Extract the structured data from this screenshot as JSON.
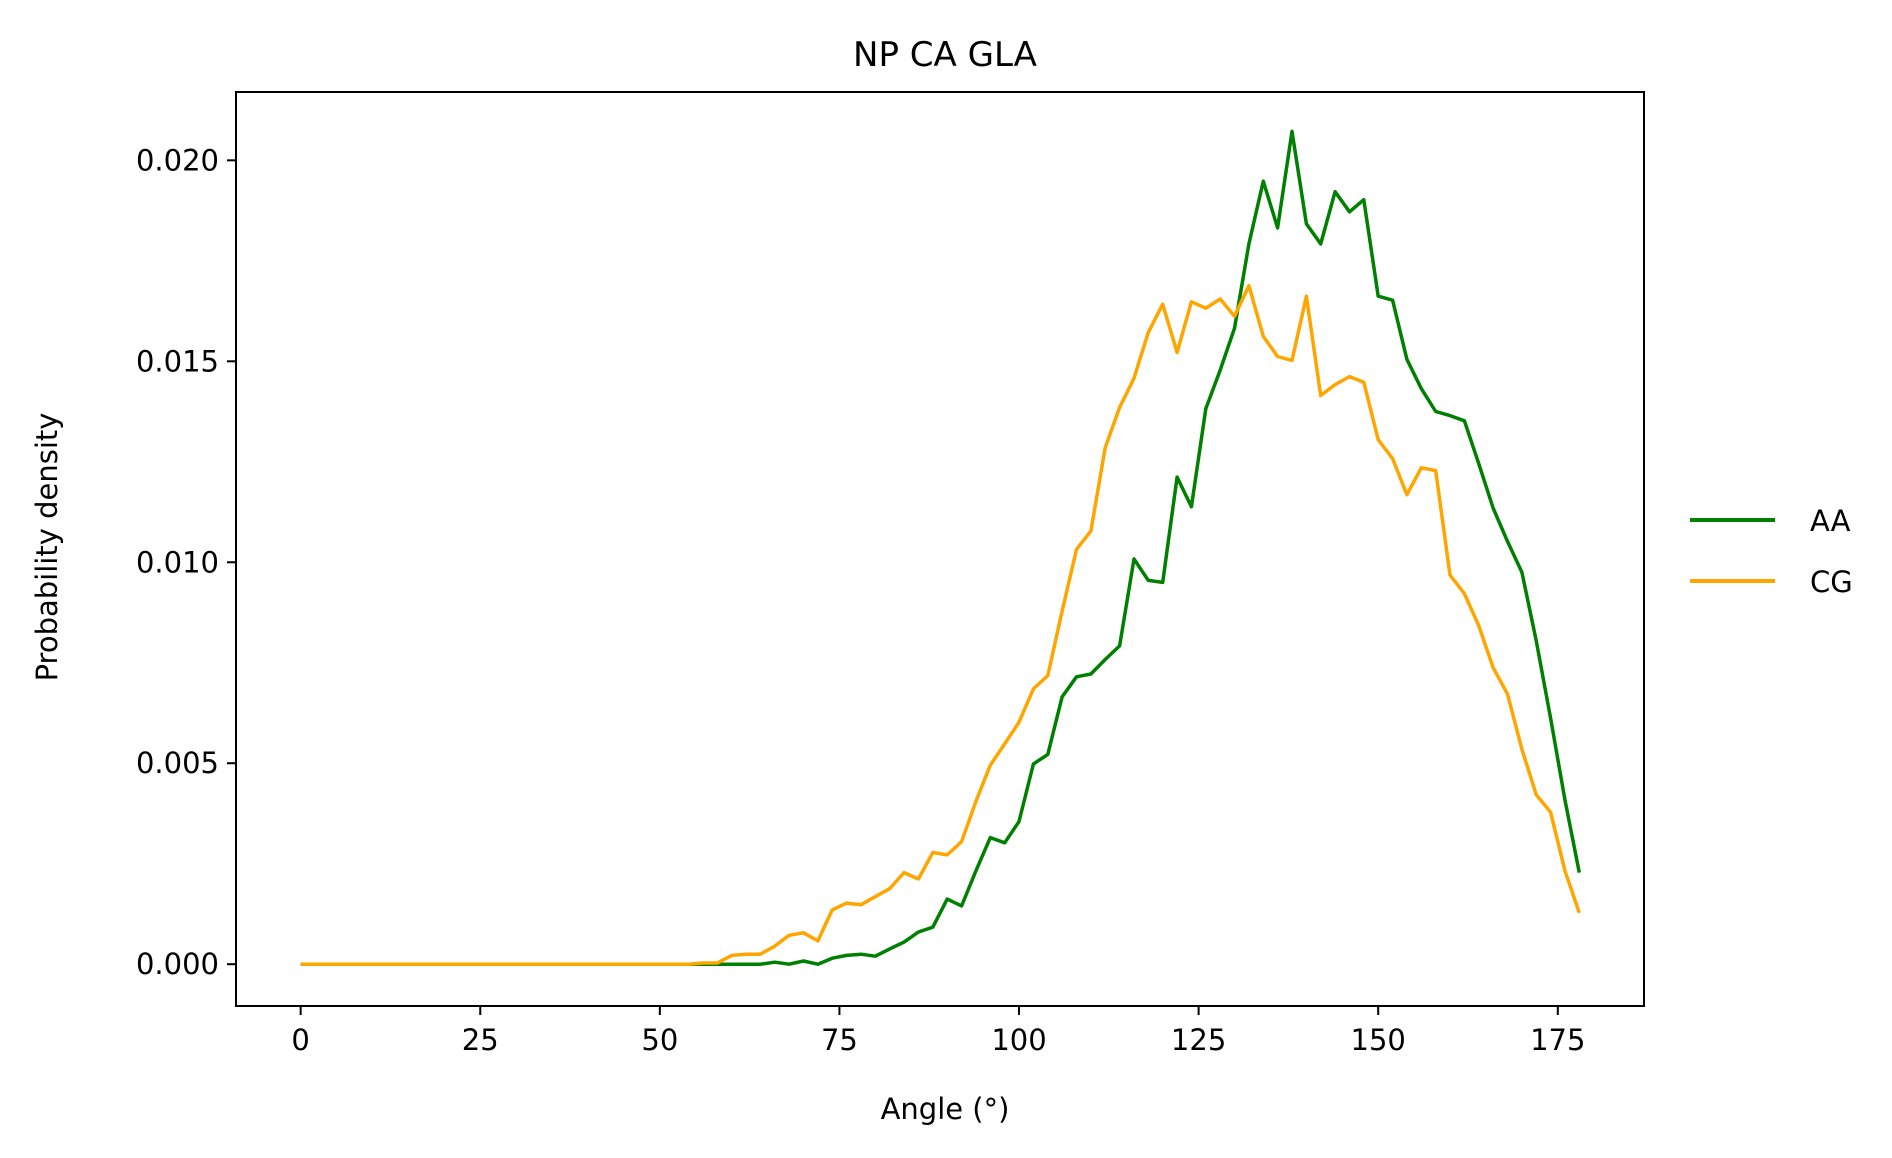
{
  "chart_data": {
    "type": "line",
    "title": "NP CA GLA",
    "xlabel": "Angle (°)",
    "ylabel": "Probability density",
    "xlim": [
      -9,
      187
    ],
    "ylim": [
      -0.00104,
      0.0217
    ],
    "xticks": [
      0,
      25,
      50,
      75,
      100,
      125,
      150,
      175
    ],
    "xtick_labels": [
      "0",
      "25",
      "50",
      "75",
      "100",
      "125",
      "150",
      "175"
    ],
    "yticks": [
      0.0,
      0.005,
      0.01,
      0.015,
      0.02
    ],
    "ytick_labels": [
      "0.000",
      "0.005",
      "0.010",
      "0.015",
      "0.020"
    ],
    "grid": false,
    "legend_position": "center-right-outside",
    "x": [
      0,
      2,
      4,
      6,
      8,
      10,
      12,
      14,
      16,
      18,
      20,
      22,
      24,
      26,
      28,
      30,
      32,
      34,
      36,
      38,
      40,
      42,
      44,
      46,
      48,
      50,
      52,
      54,
      56,
      58,
      60,
      62,
      64,
      66,
      68,
      70,
      72,
      74,
      76,
      78,
      80,
      82,
      84,
      86,
      88,
      90,
      92,
      94,
      96,
      98,
      100,
      102,
      104,
      106,
      108,
      110,
      112,
      114,
      116,
      118,
      120,
      122,
      124,
      126,
      128,
      130,
      132,
      134,
      136,
      138,
      140,
      142,
      144,
      146,
      148,
      150,
      152,
      154,
      156,
      158,
      160,
      162,
      164,
      166,
      168,
      170,
      172,
      174,
      176,
      178
    ],
    "series": [
      {
        "name": "AA",
        "color": "#008000",
        "values": [
          0,
          0,
          0,
          0,
          0,
          0,
          0,
          0,
          0,
          0,
          0,
          0,
          0,
          0,
          0,
          0,
          0,
          0,
          0,
          0,
          0,
          0,
          0,
          0,
          0,
          0,
          0,
          0,
          0,
          0,
          0,
          0,
          0,
          5e-05,
          0,
          8e-05,
          0,
          0.00015,
          0.00022,
          0.00025,
          0.0002,
          0.00038,
          0.00055,
          0.0008,
          0.00092,
          0.00162,
          0.00145,
          0.00232,
          0.00315,
          0.00302,
          0.00355,
          0.00498,
          0.00522,
          0.00665,
          0.00715,
          0.00722,
          0.00758,
          0.00792,
          0.01008,
          0.00955,
          0.0095,
          0.01212,
          0.01138,
          0.01382,
          0.01478,
          0.01582,
          0.01792,
          0.01948,
          0.01832,
          0.02072,
          0.01842,
          0.01792,
          0.01922,
          0.01872,
          0.01902,
          0.01662,
          0.01652,
          0.01505,
          0.01432,
          0.01375,
          0.01365,
          0.01352,
          0.01245,
          0.01135,
          0.01052,
          0.00975,
          0.00805,
          0.00612,
          0.00408,
          0.00228
        ]
      },
      {
        "name": "CG",
        "color": "#ffa500",
        "values": [
          0,
          0,
          0,
          0,
          0,
          0,
          0,
          0,
          0,
          0,
          0,
          0,
          0,
          0,
          0,
          0,
          0,
          0,
          0,
          0,
          0,
          0,
          0,
          0,
          0,
          0,
          0,
          0,
          3e-05,
          3e-05,
          0.00022,
          0.00025,
          0.00025,
          0.00045,
          0.00072,
          0.00078,
          0.00058,
          0.00135,
          0.00152,
          0.00148,
          0.00168,
          0.00188,
          0.00228,
          0.00212,
          0.00278,
          0.00272,
          0.00305,
          0.00405,
          0.00495,
          0.00548,
          0.00602,
          0.00685,
          0.00718,
          0.00878,
          0.01032,
          0.01078,
          0.01285,
          0.01385,
          0.01458,
          0.01572,
          0.01642,
          0.01522,
          0.01648,
          0.01632,
          0.01655,
          0.01612,
          0.01688,
          0.01562,
          0.01512,
          0.01502,
          0.01662,
          0.01415,
          0.01442,
          0.01462,
          0.01448,
          0.01305,
          0.01258,
          0.01168,
          0.01235,
          0.01228,
          0.00968,
          0.00922,
          0.00842,
          0.00738,
          0.00672,
          0.00535,
          0.00422,
          0.00378,
          0.00232,
          0.00128
        ]
      }
    ]
  }
}
